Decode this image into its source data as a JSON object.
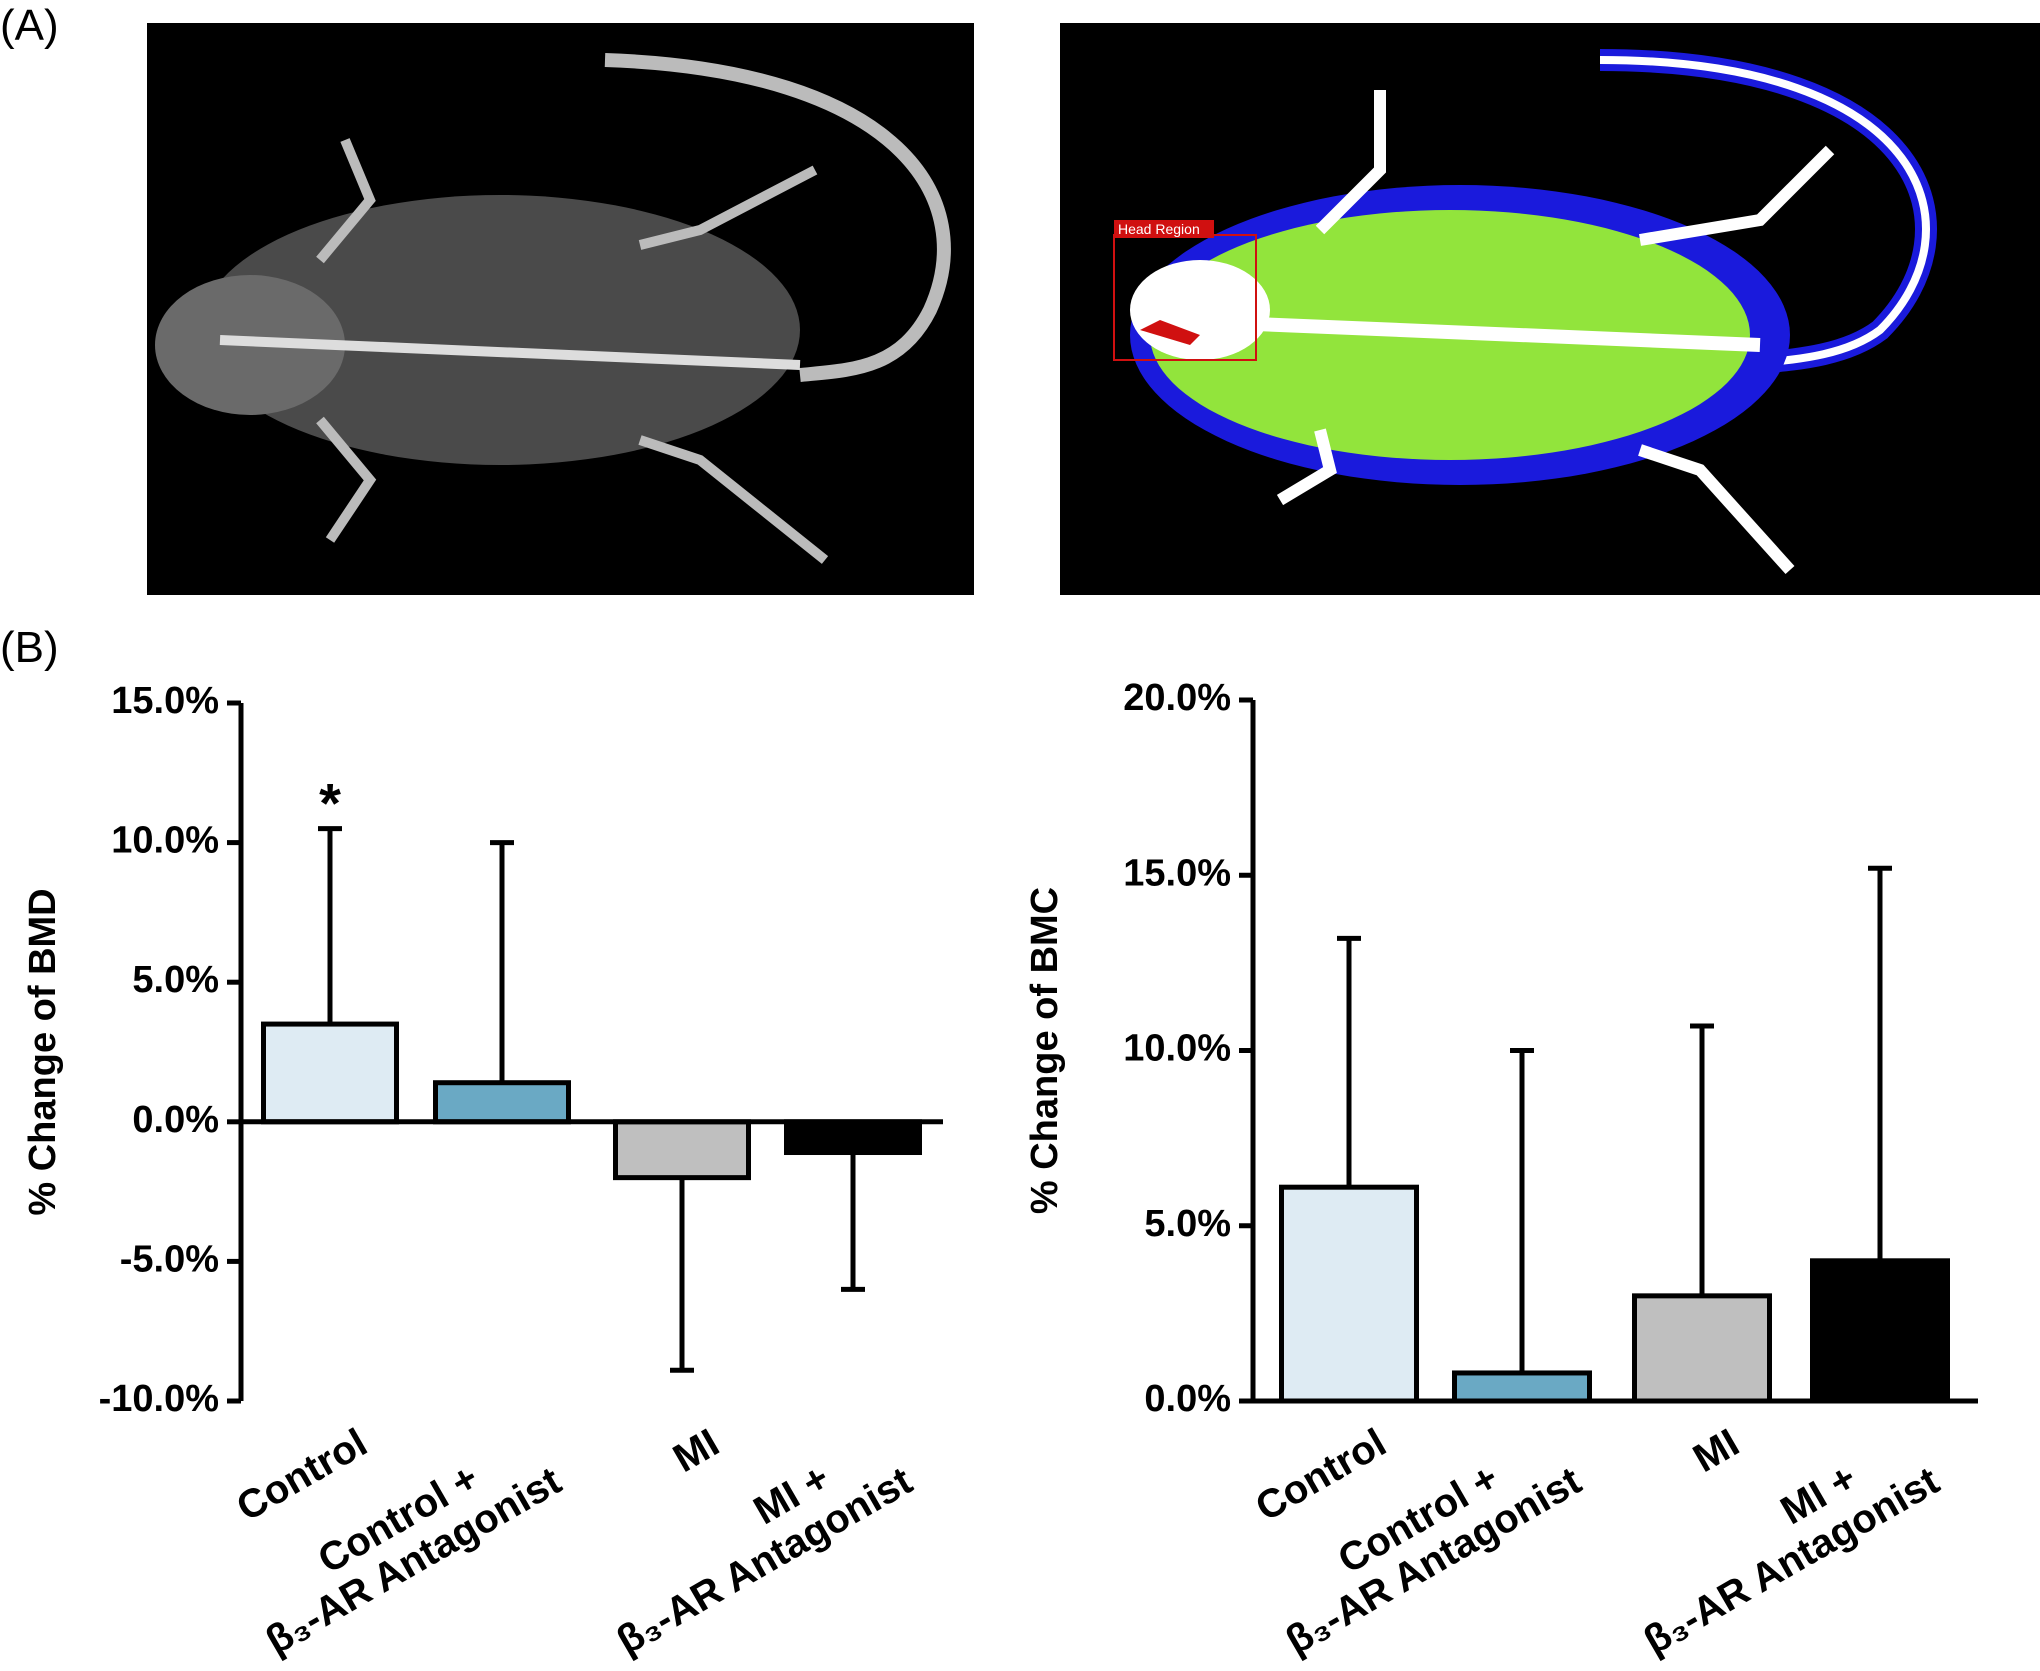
{
  "panel_labels": [
    "(A)",
    "(B)"
  ],
  "image_labels": [
    "Head Region"
  ],
  "chart_data": [
    {
      "type": "bar",
      "ylabel": "% Change of BMD",
      "categories": [
        "Control",
        "Control +\nβ₃-AR Antagonist",
        "MI",
        "MI +\nβ₃-AR Antagonist"
      ],
      "values": [
        3.5,
        1.4,
        -2,
        -1.1
      ],
      "errors": [
        7,
        8.6,
        6.9,
        4.9
      ],
      "colors": [
        "#deebf3",
        "#6aa9c4",
        "#bfbfbf",
        "#000000"
      ],
      "ylim": [
        -10,
        15
      ],
      "yticks": [
        {
          "value": -10,
          "label": "-10.0%"
        },
        {
          "value": -5,
          "label": "-5.0%"
        },
        {
          "value": 0,
          "label": "0.0%"
        },
        {
          "value": 5,
          "label": "5.0%"
        },
        {
          "value": 10,
          "label": "10.0%"
        },
        {
          "value": 15,
          "label": "15.0%"
        }
      ],
      "annotations": [
        {
          "text": "*",
          "index": 0
        }
      ]
    },
    {
      "type": "bar",
      "ylabel": "% Change of BMC",
      "categories": [
        "Control",
        "Control +\nβ₃-AR Antagonist",
        "MI",
        "MI +\nβ₃-AR Antagonist"
      ],
      "values": [
        6.1,
        0.8,
        3.0,
        4.0
      ],
      "errors": [
        7.1,
        9.2,
        7.7,
        11.2
      ],
      "colors": [
        "#deebf3",
        "#6aa9c4",
        "#bfbfbf",
        "#000000"
      ],
      "ylim": [
        0,
        20
      ],
      "yticks": [
        {
          "value": 0,
          "label": "0.0%"
        },
        {
          "value": 5,
          "label": "5.0%"
        },
        {
          "value": 10,
          "label": "10.0%"
        },
        {
          "value": 15,
          "label": "15.0%"
        },
        {
          "value": 20,
          "label": "20.0%"
        }
      ]
    }
  ]
}
